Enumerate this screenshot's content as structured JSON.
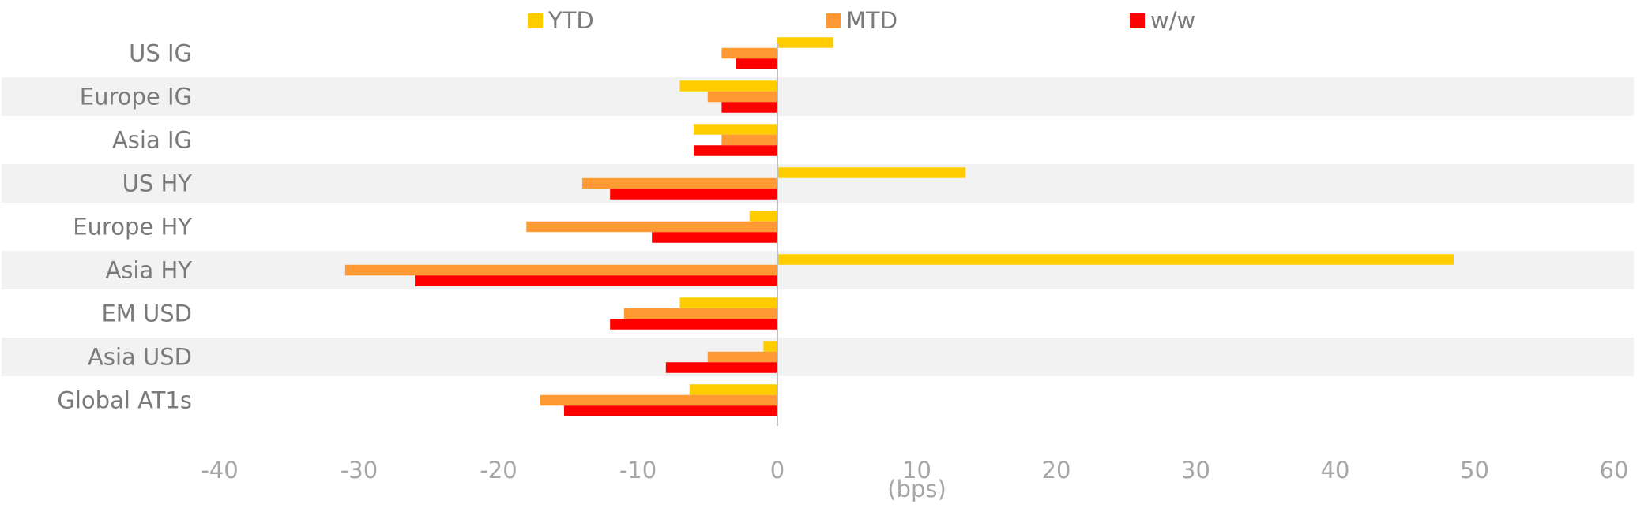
{
  "chart_data": {
    "type": "bar",
    "orientation": "horizontal",
    "categories": [
      "US IG",
      "Europe IG",
      "Asia IG",
      "US HY",
      "Europe HY",
      "Asia HY",
      "EM USD",
      "Asia USD",
      "Global AT1s"
    ],
    "series": [
      {
        "name": "YTD",
        "color": "#ffcc00",
        "values": [
          4,
          -7,
          -6,
          13.5,
          -2,
          48.5,
          -7,
          -1,
          -6.3
        ]
      },
      {
        "name": "MTD",
        "color": "#ff9933",
        "values": [
          -4,
          -5,
          -4,
          -14,
          -18,
          -31,
          -11,
          -5,
          -17
        ]
      },
      {
        "name": "w/w",
        "color": "#ff0000",
        "values": [
          -3,
          -4,
          -6,
          -12,
          -9,
          -26,
          -12,
          -8,
          -15.3
        ]
      }
    ],
    "xlim": [
      -40,
      60
    ],
    "xticks": [
      "-40",
      "-30",
      "-20",
      "-10",
      "0",
      "10",
      "20",
      "30",
      "40",
      "50",
      "60"
    ],
    "xlabel": "(bps)",
    "legend_position": "top",
    "grid": false,
    "row_banding": true
  }
}
